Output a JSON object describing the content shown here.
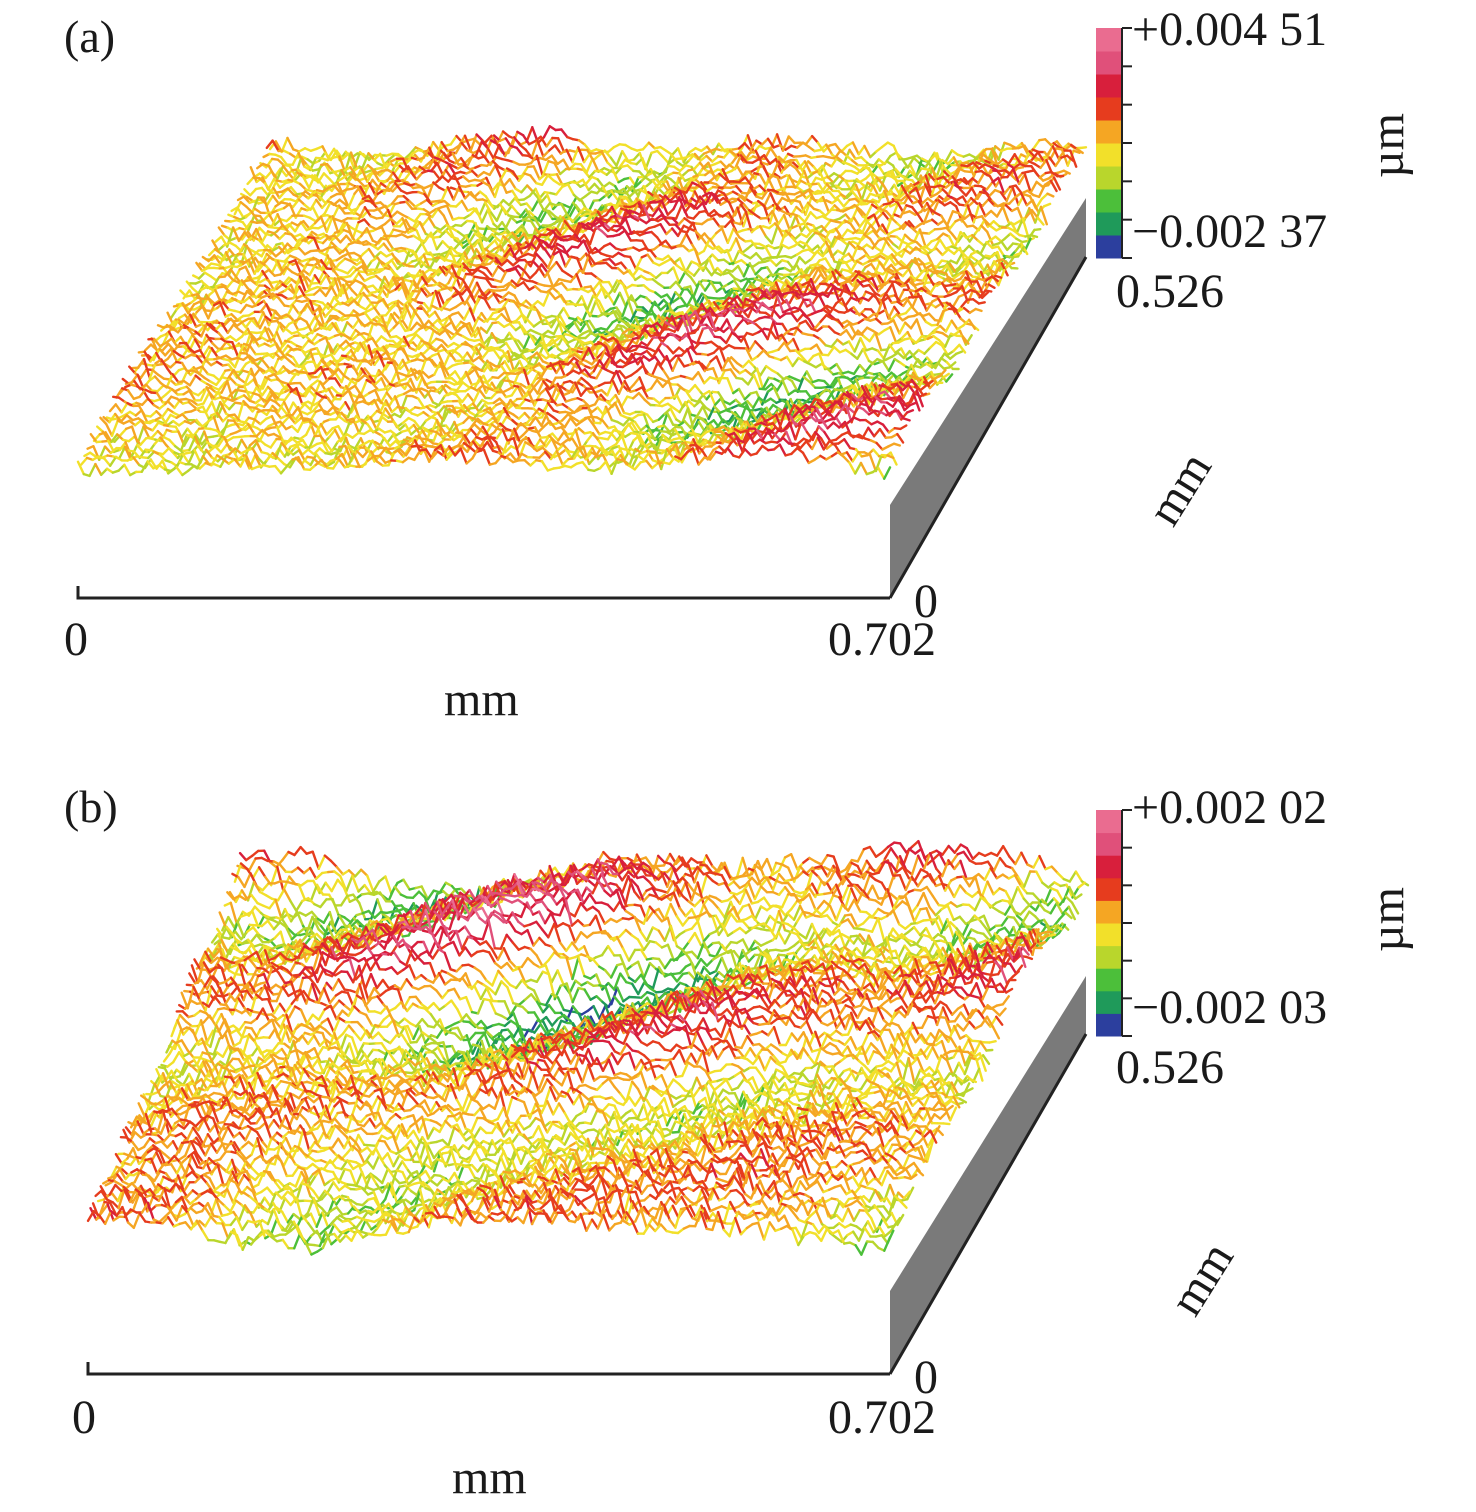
{
  "panels": [
    {
      "label": "(a)",
      "colorbar": {
        "max": "+0.004 51",
        "min": "−0.002 37",
        "unit": "µm"
      },
      "x_axis": {
        "start": "0",
        "end": "0.702",
        "unit": "mm"
      },
      "y_axis": {
        "start": "0",
        "end": "0.526",
        "unit": "mm"
      }
    },
    {
      "label": "(b)",
      "colorbar": {
        "max": "+0.002 02",
        "min": "−0.002 03",
        "unit": "µm"
      },
      "x_axis": {
        "start": "0",
        "end": "0.702",
        "unit": "mm"
      },
      "y_axis": {
        "start": "0",
        "end": "0.526",
        "unit": "mm"
      }
    }
  ],
  "colormap": [
    "#2c3f9e",
    "#1f9a5a",
    "#4cbf3a",
    "#b9d62c",
    "#f2e02a",
    "#f5a623",
    "#e63c1e",
    "#d81f3c",
    "#e0507a",
    "#ea6c90"
  ],
  "side_color": "#7a7a7a"
}
